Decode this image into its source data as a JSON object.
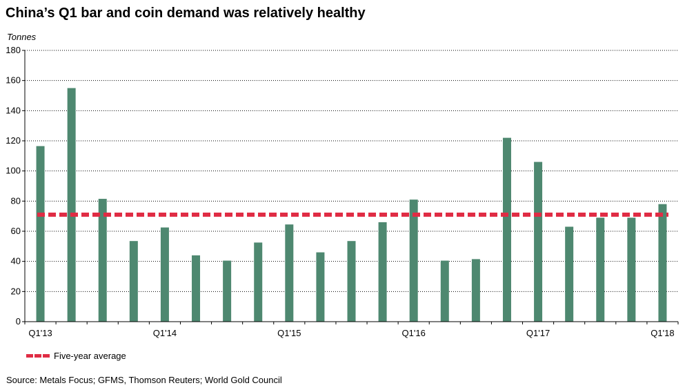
{
  "chart_data": {
    "type": "bar",
    "title": "China’s Q1 bar and coin demand was relatively healthy",
    "ylabel": "Tonnes",
    "ylim": [
      0,
      180
    ],
    "yticks": [
      0,
      20,
      40,
      60,
      80,
      100,
      120,
      140,
      160,
      180
    ],
    "grid": true,
    "categories": [
      "Q1'13",
      "Q2'13",
      "Q3'13",
      "Q4'13",
      "Q1'14",
      "Q2'14",
      "Q3'14",
      "Q4'14",
      "Q1'15",
      "Q2'15",
      "Q3'15",
      "Q4'15",
      "Q1'16",
      "Q2'16",
      "Q3'16",
      "Q4'16",
      "Q1'17",
      "Q2'17",
      "Q3'17",
      "Q4'17",
      "Q1'18"
    ],
    "x_tick_labels": [
      "Q1'13",
      "Q1'14",
      "Q1'15",
      "Q1'16",
      "Q1'17",
      "Q1'18"
    ],
    "values": [
      116.5,
      155,
      81.5,
      53.5,
      62.5,
      44,
      40.5,
      52.5,
      64.5,
      46,
      53.5,
      66,
      81,
      40.5,
      41.5,
      122,
      106,
      63,
      69,
      69,
      78
    ],
    "bar_color": "#4e8870",
    "reference_line": {
      "name": "Five-year average",
      "value": 71,
      "color": "#e02c44",
      "style": "dashed"
    },
    "legend": {
      "position": "bottom-left",
      "entries": [
        "Five-year average"
      ]
    },
    "source": "Source: Metals Focus; GFMS, Thomson Reuters; World Gold Council"
  }
}
